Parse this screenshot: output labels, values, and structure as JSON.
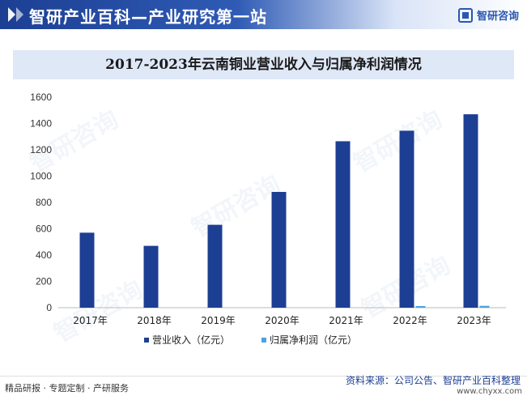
{
  "header": {
    "title": "智研产业百科—产业研究第一站",
    "brand": "智研咨询"
  },
  "watermark": "智研咨询",
  "chart_data": {
    "type": "bar",
    "title": "2017-2023年云南铜业营业收入与归属净利润情况",
    "categories": [
      "2017年",
      "2018年",
      "2019年",
      "2020年",
      "2021年",
      "2022年",
      "2023年"
    ],
    "series": [
      {
        "name": "营业收入（亿元）",
        "color": "#1c3f93",
        "values": [
          570,
          470,
          630,
          880,
          1265,
          1345,
          1470
        ]
      },
      {
        "name": "归属净利润（亿元）",
        "color": "#4aa3df",
        "values": [
          0,
          0,
          0,
          0,
          0,
          12,
          14
        ]
      }
    ],
    "ylim": [
      0,
      1600
    ],
    "yticks": [
      0,
      200,
      400,
      600,
      800,
      1000,
      1200,
      1400,
      1600
    ],
    "grid": false,
    "legend": "bottom"
  },
  "footer": {
    "left": "精品研报 · 专题定制 · 产研服务",
    "source": "资料来源：公司公告、智研产业百科整理",
    "site": "www.chyxx.com"
  }
}
